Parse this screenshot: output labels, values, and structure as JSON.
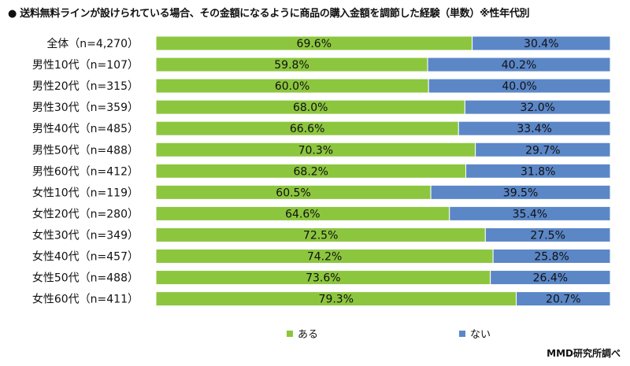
{
  "title": "●  送料無料ラインが設けられている場合、その金額になるように商品の購入金額を調節した経験（単数）※性年代別",
  "source": "MMD研究所調べ",
  "colors": {
    "aru": "#8cc63f",
    "nai": "#5b87c7",
    "border": "#ffffff"
  },
  "chart_data": {
    "type": "bar",
    "orientation": "horizontal",
    "stacked": true,
    "percent": true,
    "title": "送料無料ラインが設けられている場合、その金額になるように商品の購入金額を調節した経験（単数）※性年代別",
    "categories": [
      "全体（n=4,270）",
      "男性10代（n=107）",
      "男性20代（n=315）",
      "男性30代（n=359）",
      "男性40代（n=485）",
      "男性50代（n=488）",
      "男性60代（n=412）",
      "女性10代（n=119）",
      "女性20代（n=280）",
      "女性30代（n=349）",
      "女性40代（n=457）",
      "女性50代（n=488）",
      "女性60代（n=411）"
    ],
    "series": [
      {
        "name": "ある",
        "color": "#8cc63f",
        "values": [
          69.6,
          59.8,
          60.0,
          68.0,
          66.6,
          70.3,
          68.2,
          60.5,
          64.6,
          72.5,
          74.2,
          73.6,
          79.3
        ],
        "labels": [
          "69.6%",
          "59.8%",
          "60.0%",
          "68.0%",
          "66.6%",
          "70.3%",
          "68.2%",
          "60.5%",
          "64.6%",
          "72.5%",
          "74.2%",
          "73.6%",
          "79.3%"
        ]
      },
      {
        "name": "ない",
        "color": "#5b87c7",
        "values": [
          30.4,
          40.2,
          40.0,
          32.0,
          33.4,
          29.7,
          31.8,
          39.5,
          35.4,
          27.5,
          25.8,
          26.4,
          20.7
        ],
        "labels": [
          "30.4%",
          "40.2%",
          "40.0%",
          "32.0%",
          "33.4%",
          "29.7%",
          "31.8%",
          "39.5%",
          "35.4%",
          "27.5%",
          "25.8%",
          "26.4%",
          "20.7%"
        ]
      }
    ],
    "xlim": [
      0,
      100
    ],
    "grid": false,
    "legend": "bottom-center"
  }
}
